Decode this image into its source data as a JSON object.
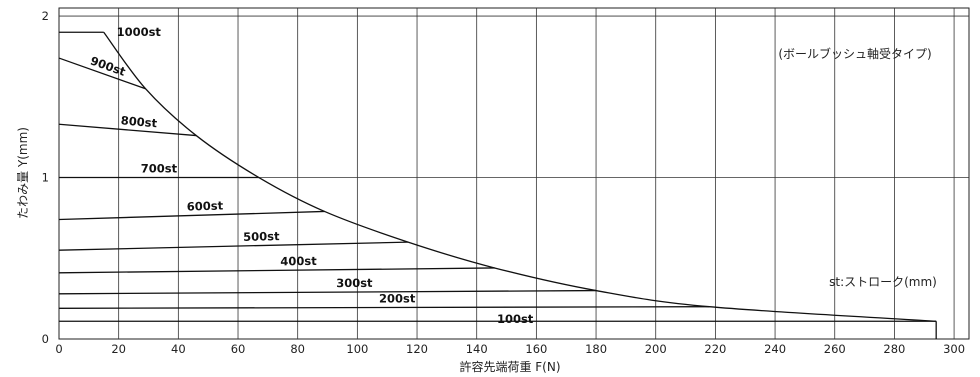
{
  "chart_data": {
    "type": "line",
    "title": "",
    "xlabel": "許容先端荷重 F(N)",
    "ylabel": "たわみ量 Y(mm)",
    "xlim": [
      0,
      305
    ],
    "ylim": [
      0,
      2.05
    ],
    "x_ticks": [
      0,
      20,
      40,
      60,
      80,
      100,
      120,
      140,
      160,
      180,
      200,
      220,
      240,
      260,
      280,
      300
    ],
    "y_ticks": [
      0,
      1,
      2
    ],
    "grid": true,
    "annotations": [
      "(ボールブッシュ軸受タイプ)",
      "st:ストローク(mm)"
    ],
    "series": [
      {
        "name": "1000st",
        "points": [
          [
            0,
            1.9
          ],
          [
            15,
            1.9
          ]
        ]
      },
      {
        "name": "900st",
        "points": [
          [
            0,
            1.74
          ],
          [
            29,
            1.55
          ]
        ]
      },
      {
        "name": "800st",
        "points": [
          [
            0,
            1.33
          ],
          [
            46,
            1.26
          ]
        ]
      },
      {
        "name": "700st",
        "points": [
          [
            0,
            1.0
          ],
          [
            67,
            1.0
          ]
        ]
      },
      {
        "name": "600st",
        "points": [
          [
            0,
            0.74
          ],
          [
            89,
            0.79
          ]
        ]
      },
      {
        "name": "500st",
        "points": [
          [
            0,
            0.55
          ],
          [
            117,
            0.6
          ]
        ]
      },
      {
        "name": "400st",
        "points": [
          [
            0,
            0.41
          ],
          [
            146,
            0.44
          ]
        ]
      },
      {
        "name": "300st",
        "points": [
          [
            0,
            0.28
          ],
          [
            180,
            0.3
          ]
        ]
      },
      {
        "name": "200st",
        "points": [
          [
            0,
            0.19
          ],
          [
            218,
            0.2
          ]
        ]
      },
      {
        "name": "100st",
        "points": [
          [
            0,
            0.11
          ],
          [
            294,
            0.11
          ]
        ]
      }
    ],
    "envelope": [
      [
        15,
        1.9
      ],
      [
        29,
        1.55
      ],
      [
        46,
        1.26
      ],
      [
        67,
        1.0
      ],
      [
        89,
        0.79
      ],
      [
        117,
        0.6
      ],
      [
        146,
        0.44
      ],
      [
        180,
        0.3
      ],
      [
        218,
        0.2
      ],
      [
        294,
        0.11
      ]
    ],
    "drop_line": [
      [
        294,
        0.11
      ],
      [
        294,
        0
      ]
    ]
  }
}
